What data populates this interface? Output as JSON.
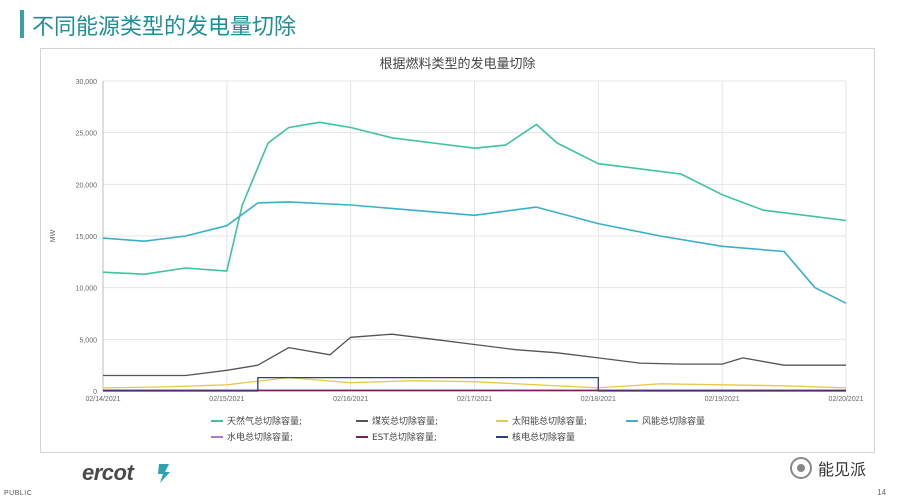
{
  "slide": {
    "title": "不同能源类型的发电量切除",
    "footer_label": "PUBLIC",
    "page_number": "14",
    "logo_text": "ercot",
    "watermark_text": "能见派"
  },
  "chart_data": {
    "type": "line",
    "title": "根据燃料类型的发电量切除",
    "ylabel": "MW",
    "ylim": [
      0,
      30000
    ],
    "yticks": [
      0,
      5000,
      10000,
      15000,
      20000,
      25000,
      30000
    ],
    "ytick_labels": [
      "0",
      "5,000",
      "10,000",
      "15,000",
      "20,000",
      "25,000",
      "30,000"
    ],
    "xlim": [
      "2021-02-14",
      "2021-02-20"
    ],
    "xtick_labels": [
      "02/14/2021",
      "02/15/2021",
      "02/16/2021",
      "02/17/2021",
      "02/18/2021",
      "02/19/2021",
      "02/20/2021"
    ],
    "grid": true,
    "legend_position": "bottom",
    "series": [
      {
        "name": "天然气总切除容量;",
        "color": "#3cc3a0",
        "x": [
          "02-14 00:00",
          "02-14 08:00",
          "02-14 16:00",
          "02-15 00:00",
          "02-15 03:00",
          "02-15 08:00",
          "02-15 12:00",
          "02-15 18:00",
          "02-16 00:00",
          "02-16 08:00",
          "02-16 16:00",
          "02-17 00:00",
          "02-17 06:00",
          "02-17 12:00",
          "02-17 16:00",
          "02-18 00:00",
          "02-18 08:00",
          "02-18 16:00",
          "02-19 00:00",
          "02-19 08:00",
          "02-19 16:00",
          "02-20 00:00"
        ],
        "values": [
          11500,
          11300,
          11900,
          11600,
          18000,
          24000,
          25500,
          26000,
          25500,
          24500,
          24000,
          23500,
          23800,
          25800,
          24000,
          22000,
          21500,
          21000,
          19000,
          17500,
          17000,
          16500
        ]
      },
      {
        "name": "煤炭总切除容量;",
        "color": "#555555",
        "x": [
          "02-14 00:00",
          "02-14 16:00",
          "02-15 00:00",
          "02-15 06:00",
          "02-15 12:00",
          "02-15 20:00",
          "02-16 00:00",
          "02-16 08:00",
          "02-16 16:00",
          "02-17 00:00",
          "02-17 08:00",
          "02-17 16:00",
          "02-18 00:00",
          "02-18 08:00",
          "02-18 16:00",
          "02-19 00:00",
          "02-19 04:00",
          "02-19 12:00",
          "02-20 00:00"
        ],
        "values": [
          1500,
          1500,
          2000,
          2500,
          4200,
          3500,
          5200,
          5500,
          5000,
          4500,
          4000,
          3700,
          3200,
          2700,
          2600,
          2600,
          3200,
          2500,
          2500
        ]
      },
      {
        "name": "太阳能总切除容量;",
        "color": "#e8c84a",
        "x": [
          "02-14 00:00",
          "02-14 12:00",
          "02-15 00:00",
          "02-15 12:00",
          "02-16 00:00",
          "02-16 12:00",
          "02-17 00:00",
          "02-17 12:00",
          "02-18 00:00",
          "02-18 12:00",
          "02-19 00:00",
          "02-19 12:00",
          "02-20 00:00"
        ],
        "values": [
          300,
          400,
          600,
          1300,
          800,
          1000,
          900,
          600,
          300,
          700,
          600,
          500,
          300
        ]
      },
      {
        "name": "风能总切除容量",
        "color": "#3ab0c8",
        "x": [
          "02-14 00:00",
          "02-14 08:00",
          "02-14 16:00",
          "02-15 00:00",
          "02-15 06:00",
          "02-15 12:00",
          "02-16 00:00",
          "02-16 12:00",
          "02-17 00:00",
          "02-17 12:00",
          "02-18 00:00",
          "02-18 12:00",
          "02-19 00:00",
          "02-19 12:00",
          "02-19 18:00",
          "02-20 00:00"
        ],
        "values": [
          14800,
          14500,
          15000,
          16000,
          18200,
          18300,
          18000,
          17500,
          17000,
          17800,
          16200,
          15000,
          14000,
          13500,
          10000,
          8500
        ]
      },
      {
        "name": "水电总切除容量;",
        "color": "#b07ad0",
        "x": [
          "02-14 00:00",
          "02-20 00:00"
        ],
        "values": [
          100,
          100
        ]
      },
      {
        "name": "EST总切除容量;",
        "color": "#7a1f5a",
        "x": [
          "02-14 00:00",
          "02-20 00:00"
        ],
        "values": [
          50,
          50
        ]
      },
      {
        "name": "核电总切除容量",
        "color": "#2e3f7a",
        "x": [
          "02-14 00:00",
          "02-15 06:00",
          "02-15 06:00",
          "02-18 00:00",
          "02-18 00:00",
          "02-20 00:00"
        ],
        "values": [
          0,
          0,
          1300,
          1300,
          0,
          0
        ]
      }
    ]
  }
}
